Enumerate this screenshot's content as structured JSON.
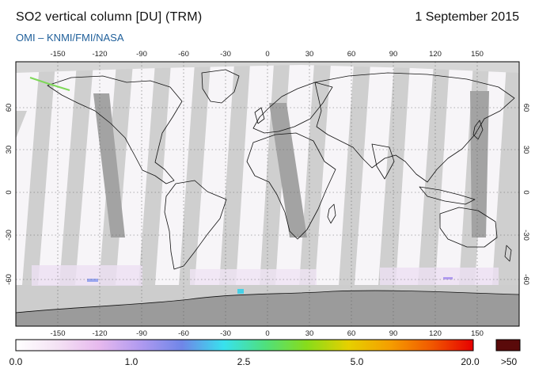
{
  "header": {
    "title": "SO2 vertical column [DU] (TRM)",
    "date": "1 September 2015",
    "credit": "OMI  –  KNMI/FMI/NASA"
  },
  "map": {
    "lon_ticks": [
      "-150",
      "-120",
      "-90",
      "-60",
      "-30",
      "0",
      "30",
      "60",
      "90",
      "120",
      "150"
    ],
    "lat_ticks": [
      "60",
      "30",
      "0",
      "-30",
      "-60"
    ],
    "colors": {
      "no_data": "#c8c8c8",
      "swath_gap": "#9e9e9e",
      "coastline": "#111111",
      "grid": "#666666"
    }
  },
  "colorbar": {
    "labels": [
      "0.0",
      "1.0",
      "2.5",
      "5.0",
      "20.0"
    ],
    "overflow_label": ">50",
    "overflow_color": "#5a0a0a",
    "stops": [
      "#ffffff",
      "#f4e2f4",
      "#e7b9ee",
      "#b09af0",
      "#6f86e8",
      "#38e1ee",
      "#4fe07c",
      "#88dc1a",
      "#e6d000",
      "#f59e00",
      "#f15800",
      "#e60000"
    ]
  }
}
